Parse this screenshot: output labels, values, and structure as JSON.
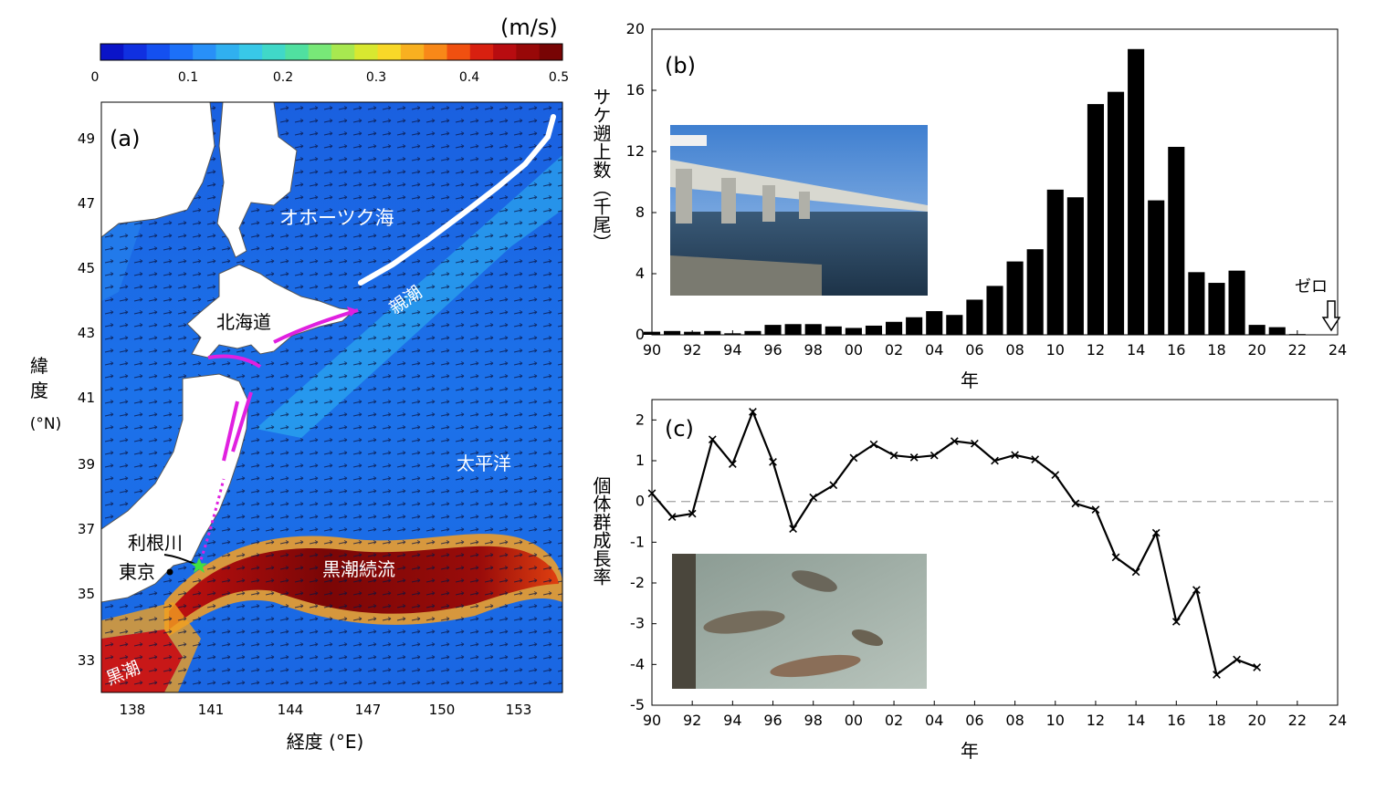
{
  "colorbar": {
    "unit": "(m/s)",
    "ticks": [
      "0",
      "0.1",
      "0.2",
      "0.3",
      "0.4",
      "0.5"
    ],
    "colors": [
      "#0a14c8",
      "#1030e0",
      "#1450f0",
      "#1c70f8",
      "#2890f8",
      "#30b0f0",
      "#38c8e8",
      "#40d8c8",
      "#50e0a0",
      "#78e878",
      "#a8e850",
      "#d8e830",
      "#f8d828",
      "#f8b020",
      "#f88818",
      "#f05010",
      "#d82010",
      "#b80c10",
      "#980808",
      "#780404"
    ]
  },
  "map": {
    "panel_label": "(a)",
    "y_axis_title_1": "緯",
    "y_axis_title_2": "度",
    "y_axis_unit": "(°N)",
    "x_axis_title": "経度 (°E)",
    "lat_ticks": [
      "49",
      "47",
      "45",
      "43",
      "41",
      "39",
      "37",
      "35",
      "33"
    ],
    "lon_ticks": [
      "138",
      "141",
      "144",
      "147",
      "150",
      "153"
    ],
    "labels": {
      "okhotsk": "オホーツク海",
      "hokkaido": "北海道",
      "oyashio": "親潮",
      "pacific": "太平洋",
      "tone_river": "利根川",
      "tokyo": "東京",
      "kuroshio_ext": "黒潮続流",
      "kuroshio": "黒潮"
    },
    "colors": {
      "land": "#ffffff",
      "ocean": "#1a6ee8",
      "migration": "#e020e0",
      "river_mouth": "#40e040"
    }
  },
  "chart_b": {
    "panel_label": "(b)",
    "ylabel": "サケ遡上数（千尾）",
    "xlabel": "年",
    "zero_label": "ゼロ",
    "yticks": [
      "0",
      "4",
      "8",
      "12",
      "16",
      "20"
    ],
    "xticks": [
      "90",
      "92",
      "94",
      "96",
      "98",
      "00",
      "02",
      "04",
      "06",
      "08",
      "10",
      "12",
      "14",
      "16",
      "18",
      "20",
      "22",
      "24"
    ]
  },
  "chart_c": {
    "panel_label": "(c)",
    "ylabel": "個体群成長率",
    "xlabel": "年",
    "yticks": [
      "2",
      "1",
      "0",
      "-1",
      "-2",
      "-3",
      "-4",
      "-5"
    ],
    "xticks": [
      "90",
      "92",
      "94",
      "96",
      "98",
      "00",
      "02",
      "04",
      "06",
      "08",
      "10",
      "12",
      "14",
      "16",
      "18",
      "20",
      "22",
      "24"
    ]
  },
  "chart_data": [
    {
      "type": "bar",
      "title": "(b)",
      "xlabel": "年",
      "ylabel": "サケ遡上数（千尾）",
      "ylim": [
        0,
        20
      ],
      "xlim": [
        1990,
        2024
      ],
      "x": [
        1990,
        1991,
        1992,
        1993,
        1994,
        1995,
        1996,
        1997,
        1998,
        1999,
        2000,
        2001,
        2002,
        2003,
        2004,
        2005,
        2006,
        2007,
        2008,
        2009,
        2010,
        2011,
        2012,
        2013,
        2014,
        2015,
        2016,
        2017,
        2018,
        2019,
        2020,
        2021,
        2022,
        2023
      ],
      "values": [
        0.2,
        0.25,
        0.2,
        0.25,
        0.1,
        0.25,
        0.65,
        0.7,
        0.7,
        0.55,
        0.45,
        0.6,
        0.85,
        1.15,
        1.55,
        1.3,
        2.3,
        3.2,
        4.8,
        5.6,
        9.5,
        9.0,
        15.1,
        15.9,
        18.7,
        8.8,
        12.3,
        4.1,
        3.4,
        4.2,
        0.65,
        0.5,
        0.05,
        0.0
      ]
    },
    {
      "type": "line",
      "title": "(c)",
      "xlabel": "年",
      "ylabel": "個体群成長率",
      "ylim": [
        -5,
        2.5
      ],
      "xlim": [
        1990,
        2024
      ],
      "x": [
        1990,
        1991,
        1992,
        1993,
        1994,
        1995,
        1996,
        1997,
        1998,
        1999,
        2000,
        2001,
        2002,
        2003,
        2004,
        2005,
        2006,
        2007,
        2008,
        2009,
        2010,
        2011,
        2012,
        2013,
        2014,
        2015,
        2016,
        2017,
        2018,
        2019,
        2020
      ],
      "values": [
        0.2,
        -0.38,
        -0.3,
        1.52,
        0.92,
        2.2,
        0.97,
        -0.67,
        0.1,
        0.4,
        1.07,
        1.4,
        1.13,
        1.08,
        1.13,
        1.48,
        1.42,
        1.0,
        1.14,
        1.03,
        0.65,
        -0.05,
        -0.2,
        -1.37,
        -1.73,
        -0.77,
        -2.95,
        -2.17,
        -4.25,
        -3.88,
        -4.07
      ],
      "reference_line": 0
    }
  ]
}
